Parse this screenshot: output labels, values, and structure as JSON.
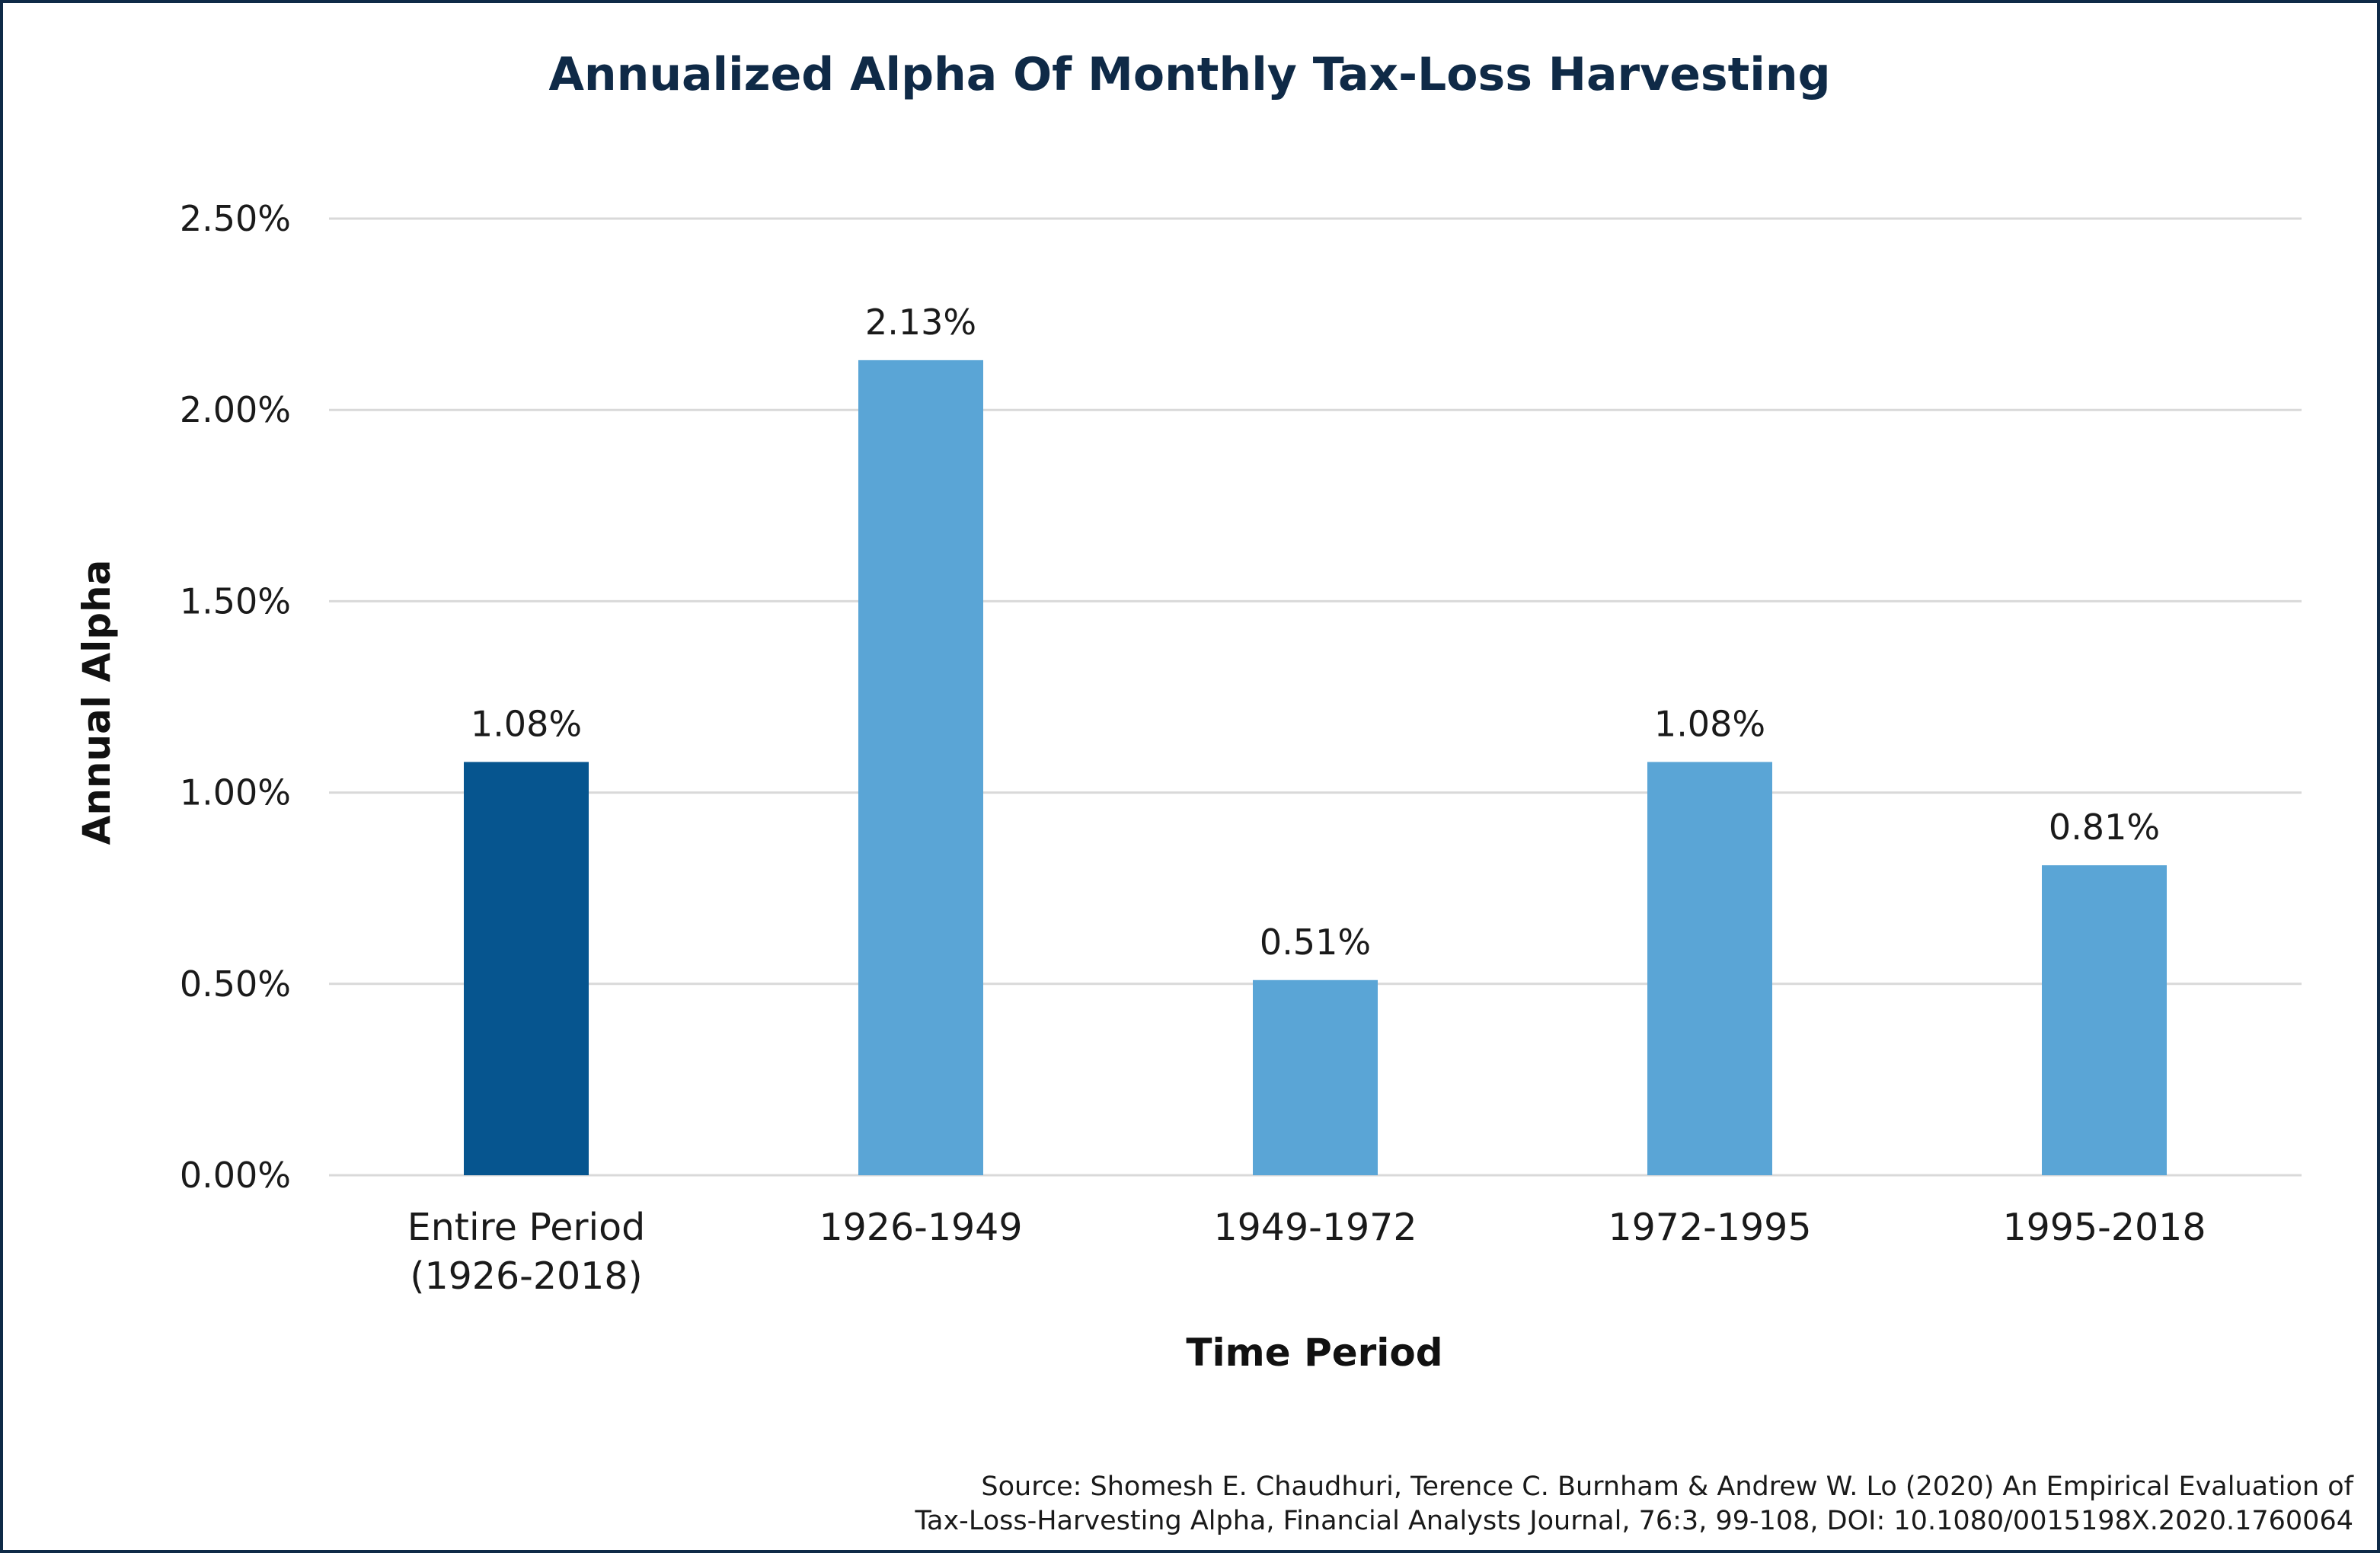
{
  "chart_data": {
    "type": "bar",
    "title": "Annualized Alpha Of Monthly Tax-Loss Harvesting",
    "xlabel": "Time Period",
    "ylabel": "Annual Alpha",
    "categories": [
      [
        "Entire Period",
        "(1926-2018)"
      ],
      [
        "1926-1949"
      ],
      [
        "1949-1972"
      ],
      [
        "1972-1995"
      ],
      [
        "1995-2018"
      ]
    ],
    "values": [
      1.08,
      2.13,
      0.51,
      1.08,
      0.81
    ],
    "data_labels": [
      "1.08%",
      "2.13%",
      "0.51%",
      "1.08%",
      "0.81%"
    ],
    "bar_colors": [
      "#06558f",
      "#5aa5d6",
      "#5aa5d6",
      "#5aa5d6",
      "#5aa5d6"
    ],
    "ylim": [
      0,
      2.5
    ],
    "yticks": [
      0,
      0.5,
      1.0,
      1.5,
      2.0,
      2.5
    ],
    "ytick_labels": [
      "0.00%",
      "0.50%",
      "1.00%",
      "1.50%",
      "2.00%",
      "2.50%"
    ],
    "grid": true,
    "gridline_color": "#d9d9d9"
  },
  "source": {
    "line1": "Source: Shomesh E. Chaudhuri, Terence C. Burnham & Andrew W. Lo (2020) An Empirical Evaluation of",
    "line2": "Tax-Loss-Harvesting Alpha, Financial Analysts Journal, 76:3, 99-108, DOI: 10.1080/0015198X.2020.1760064"
  },
  "colors": {
    "frame_border": "#0f2a47",
    "title": "#0f2a47"
  }
}
